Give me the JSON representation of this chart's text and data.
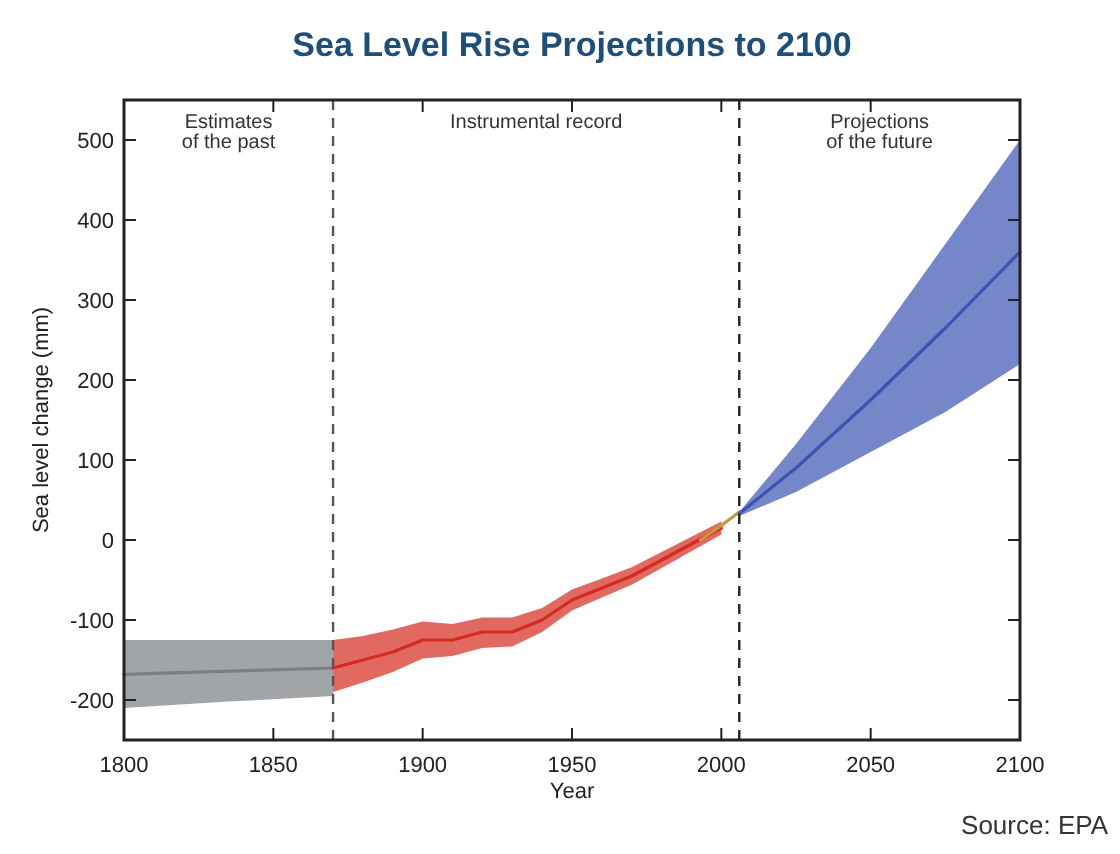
{
  "chart_data": {
    "type": "line",
    "title": "Sea Level Rise Projections to 2100",
    "xlabel": "Year",
    "ylabel": "Sea level change (mm)",
    "xlim": [
      1800,
      2100
    ],
    "xticks": [
      1800,
      1850,
      1900,
      1950,
      2000,
      2050,
      2100
    ],
    "ylim": [
      -250,
      550
    ],
    "yticks": [
      -200,
      -100,
      0,
      100,
      200,
      300,
      400,
      500
    ],
    "marker": "none",
    "line_style": "solid",
    "series": [
      {
        "color": "#7a7f82",
        "x": [
          1800,
          1835,
          1870
        ],
        "values": [
          -168,
          -164,
          -160
        ],
        "lower": [
          -210,
          -202,
          -195
        ],
        "upper": [
          -125,
          -125,
          -125
        ]
      },
      {
        "color": "#d42a20",
        "x": [
          1870,
          1880,
          1890,
          1900,
          1910,
          1920,
          1930,
          1940,
          1950,
          1960,
          1970,
          1980,
          1990,
          2000
        ],
        "values": [
          -160,
          -150,
          -140,
          -125,
          -125,
          -115,
          -115,
          -100,
          -75,
          -60,
          -45,
          -25,
          -5,
          15
        ],
        "lower": [
          -190,
          -178,
          -165,
          -148,
          -145,
          -135,
          -133,
          -115,
          -88,
          -72,
          -56,
          -35,
          -14,
          7
        ],
        "upper": [
          -125,
          -120,
          -112,
          -102,
          -105,
          -97,
          -97,
          -85,
          -62,
          -48,
          -34,
          -15,
          4,
          23
        ]
      },
      {
        "color": "#c8963c",
        "x": [
          1993,
          2000,
          2006
        ],
        "values": [
          0,
          18,
          35
        ]
      },
      {
        "color": "#3a54b0",
        "x": [
          2006,
          2025,
          2050,
          2075,
          2100
        ],
        "values": [
          33,
          90,
          175,
          265,
          360
        ],
        "lower": [
          30,
          60,
          110,
          160,
          220
        ],
        "upper": [
          35,
          120,
          240,
          370,
          500
        ]
      }
    ],
    "ref_lines": [
      {
        "axis": "x",
        "value": 1870,
        "line_style": "dashed",
        "color": "#555555"
      },
      {
        "axis": "x",
        "value": 2006,
        "line_style": "dashed",
        "color": "#222222"
      }
    ],
    "annotations": [
      "Estimates\nof the past",
      "Instrumental record",
      "Projections\nof the future",
      "Source: EPA"
    ]
  }
}
